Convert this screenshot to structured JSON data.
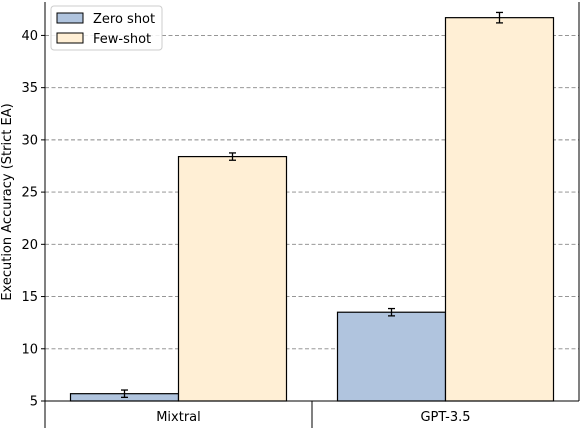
{
  "chart_data": {
    "type": "bar",
    "categories": [
      "Mixtral",
      "GPT-3.5"
    ],
    "series": [
      {
        "name": "Zero shot",
        "values": [
          5.7,
          13.5
        ],
        "errors": [
          0.35,
          0.35
        ],
        "color": "#b0c4de"
      },
      {
        "name": "Few-shot",
        "values": [
          28.4,
          41.7
        ],
        "errors": [
          0.35,
          0.5
        ],
        "color": "#ffefd5"
      }
    ],
    "ylabel": "Execution Accuracy (Strict EA)",
    "ylim": [
      5,
      43.2
    ],
    "yticks": [
      5,
      10,
      15,
      20,
      25,
      30,
      35,
      40
    ],
    "grid": "y-dashed",
    "legend": "top-left",
    "bar_edge_color": "#000000",
    "grid_color": "#888888"
  }
}
